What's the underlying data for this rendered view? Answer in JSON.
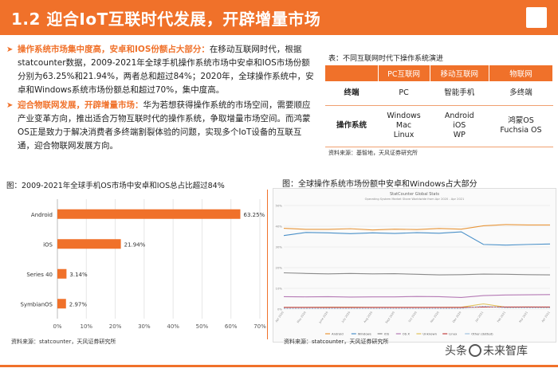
{
  "header": {
    "title": "1.2 迎合IoT互联时代发展，开辟增量市场"
  },
  "bullets": [
    {
      "highlight": "操作系统市场集中度高，安卓和IOS份额占大部分：",
      "text": "在移动互联网时代，根据statcounter数据，2009-2021年全球手机操作系统市场中安卓和IOS市场份额分别为63.25%和21.94%，两者总和超过84%；2020年，全球操作系统中，安卓和Windows系统市场份额总和超过70%，集中度高。"
    },
    {
      "highlight": "迎合物联网发展，开辟增量市场：",
      "text": "华为若想获得操作系统的市场空间，需要顺应产业变革方向，推出适合万物互联时代的操作系统，争取增量市场空间。而鸿蒙OS正是致力于解决消费者多终端割裂体验的问题，实现多个IoT设备的互联互通，迎合物联网发展方向。"
    }
  ],
  "table": {
    "caption": "表：不同互联网时代下操作系统演进",
    "headers": [
      "",
      "PC互联网",
      "移动互联网",
      "物联网"
    ],
    "rows": [
      {
        "label": "终端",
        "cells": [
          "PC",
          "智能手机",
          "多终端"
        ]
      },
      {
        "label": "操作系统",
        "cells": [
          "Windows\nMac\nLinux",
          "Android\niOS\nWP",
          "鸿蒙OS\nFuchsia OS"
        ]
      }
    ],
    "source": "资料来源：基智地，天风证券研究所"
  },
  "chart_data": [
    {
      "type": "bar",
      "orientation": "horizontal",
      "title": "图：2009-2021年全球手机OS市场中安卓和IOS总占比超过84%",
      "categories": [
        "Android",
        "iOS",
        "Series 40",
        "SymbianOS"
      ],
      "values": [
        63.25,
        21.94,
        3.14,
        2.97
      ],
      "value_labels": [
        "63.25%",
        "21.94%",
        "3.14%",
        "2.97%"
      ],
      "xlim": [
        0,
        70
      ],
      "xticks": [
        "0%",
        "10%",
        "20%",
        "30%",
        "40%",
        "50%",
        "60%",
        "70%"
      ],
      "color": "#f0712a",
      "source": "资料来源：statcounter，天风证券研究所"
    },
    {
      "type": "line",
      "title": "图：全球操作系统市场份额中安卓和Windows占大部分",
      "inner_title": "StatCounter Global Stats",
      "inner_subtitle": "Operating System Market Share Worldwide from Apr 2020 - Apr 2021",
      "x": [
        "Apr 2020",
        "May 2020",
        "June 2020",
        "July 2020",
        "Aug 2020",
        "Sept 2020",
        "Oct 2020",
        "Nov 2020",
        "Dec 2020",
        "Jan 2021",
        "Feb 2021",
        "Mar 2021",
        "Apr 2021"
      ],
      "ylim": [
        0,
        50
      ],
      "yticks": [
        "0%",
        "10%",
        "20%",
        "30%",
        "40%",
        "50%"
      ],
      "series": [
        {
          "name": "Android",
          "color": "#e8963a",
          "values": [
            39,
            38.5,
            38.5,
            38.8,
            38.2,
            38.6,
            38.4,
            38.9,
            38.6,
            40.2,
            40.8,
            40.6,
            40.6
          ]
        },
        {
          "name": "Windows",
          "color": "#4a90c8",
          "values": [
            35.5,
            37,
            36.8,
            36.4,
            36.8,
            36.5,
            36.9,
            36.6,
            37.3,
            31.2,
            30.9,
            31.2,
            31.4
          ]
        },
        {
          "name": "iOS",
          "color": "#8a8a8a",
          "values": [
            17.5,
            17.2,
            17,
            17.2,
            17,
            17.1,
            16.8,
            16.5,
            16.6,
            16.9,
            16.8,
            16.6,
            16.5
          ]
        },
        {
          "name": "OS X",
          "color": "#b57ab5",
          "values": [
            6,
            5.9,
            6,
            5.8,
            5.9,
            5.9,
            6.1,
            6,
            5.6,
            6.5,
            6.8,
            6.9,
            7
          ]
        },
        {
          "name": "Unknown",
          "color": "#e1c15a",
          "values": [
            0.8,
            0.8,
            0.9,
            0.9,
            0.8,
            0.8,
            0.8,
            0.8,
            0.9,
            2.5,
            0.9,
            1.0,
            0.9
          ]
        },
        {
          "name": "Linux",
          "color": "#c04040",
          "values": [
            0.8,
            0.8,
            0.8,
            0.8,
            0.8,
            0.8,
            0.8,
            0.8,
            0.8,
            1.0,
            1.0,
            1.0,
            1.0
          ]
        },
        {
          "name": "Other (dotted)",
          "color": "#a0c0e0",
          "values": [
            0.3,
            0.3,
            0.3,
            0.3,
            0.3,
            0.3,
            0.3,
            0.3,
            0.3,
            1.4,
            0.6,
            0.6,
            0.6
          ]
        }
      ],
      "legend": [
        "Android",
        "Windows",
        "iOS",
        "OS X",
        "Unknown",
        "Linux",
        "Other (dotted)"
      ],
      "source": "资料来源：statcounter，天风证券研究所"
    }
  ],
  "watermark": {
    "left": "头条",
    "right": "未来智库"
  },
  "colors": {
    "accent": "#f0712a"
  }
}
